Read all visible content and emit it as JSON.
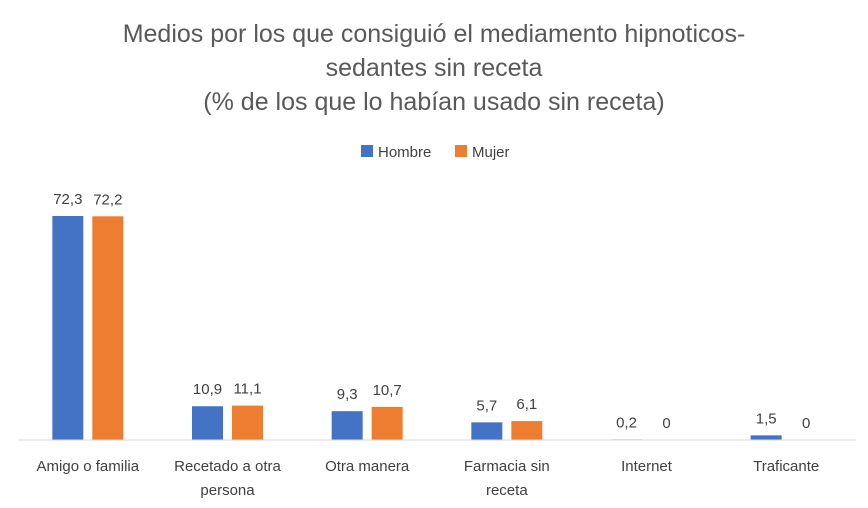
{
  "chart_data": {
    "type": "bar",
    "title": [
      "Medios por los que consiguió el mediamento hipnoticos-",
      "sedantes sin receta",
      "(% de los que lo habían usado sin receta)"
    ],
    "categories": [
      [
        "Amigo o familia"
      ],
      [
        "Recetado a otra",
        "persona"
      ],
      [
        "Otra manera"
      ],
      [
        "Farmacia sin",
        "receta"
      ],
      [
        "Internet"
      ],
      [
        "Traficante"
      ]
    ],
    "series": [
      {
        "name": "Hombre",
        "color": "#4472C4",
        "values": [
          72.3,
          10.9,
          9.3,
          5.7,
          0.2,
          1.5
        ],
        "labels": [
          "72,3",
          "10,9",
          "9,3",
          "5,7",
          "0,2",
          "1,5"
        ]
      },
      {
        "name": "Mujer",
        "color": "#ED7D31",
        "values": [
          72.2,
          11.1,
          10.7,
          6.1,
          0,
          0
        ],
        "labels": [
          "72,2",
          "11,1",
          "10,7",
          "6,1",
          "0",
          "0"
        ]
      }
    ],
    "ylim": [
      0,
      80
    ],
    "grid": false,
    "legend_position": "top",
    "data_labels": true
  }
}
